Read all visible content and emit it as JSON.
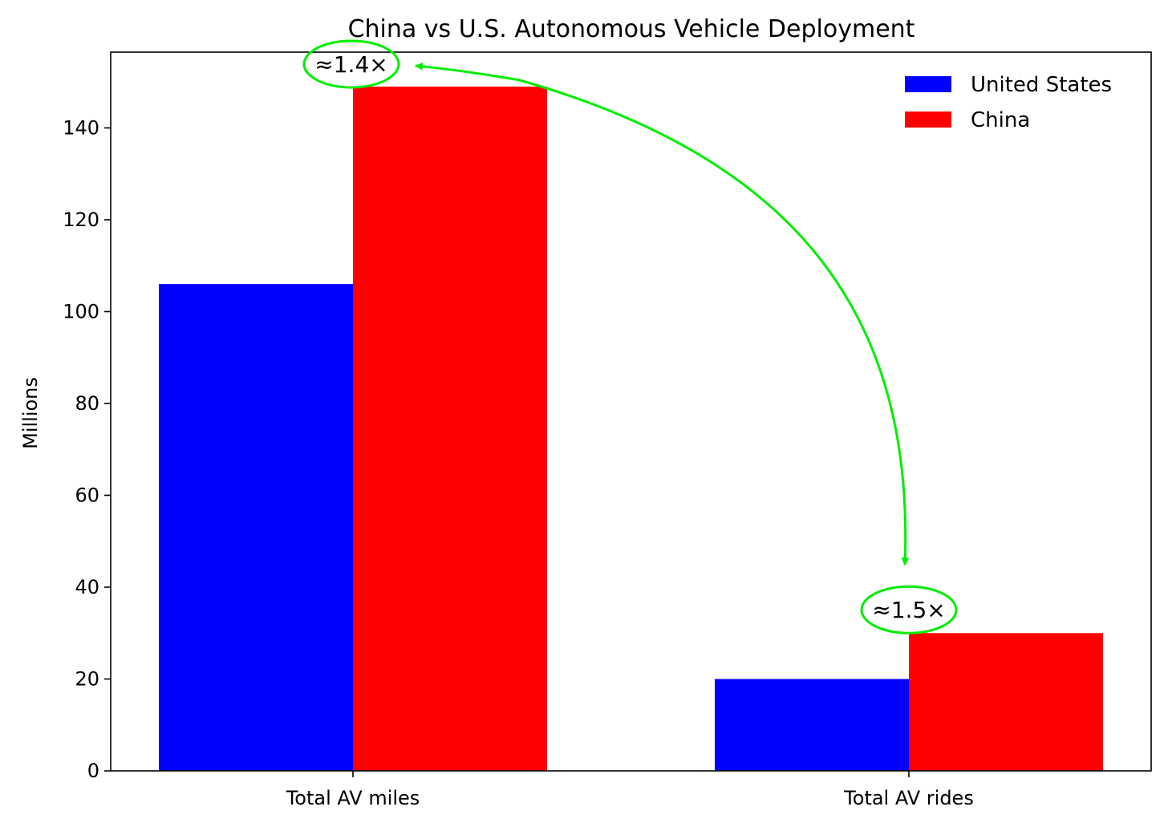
{
  "chart_data": {
    "type": "bar",
    "title": "China vs U.S. Autonomous Vehicle Deployment",
    "xlabel": "",
    "ylabel": "Millions",
    "categories": [
      "Total AV miles",
      "Total AV rides"
    ],
    "series": [
      {
        "name": "United States",
        "values": [
          106,
          20
        ],
        "color": "#0000ff"
      },
      {
        "name": "China",
        "values": [
          149,
          30
        ],
        "color": "#ff0000"
      }
    ],
    "ylim": [
      0,
      156.5
    ],
    "yticks": [
      0,
      20,
      40,
      60,
      80,
      100,
      120,
      140
    ],
    "grid": false,
    "legend": "top-right",
    "annotations": [
      {
        "text": "≈1.4×",
        "category_index": 0
      },
      {
        "text": "≈1.5×",
        "category_index": 1
      }
    ],
    "annotation_color": "#00ee00"
  }
}
